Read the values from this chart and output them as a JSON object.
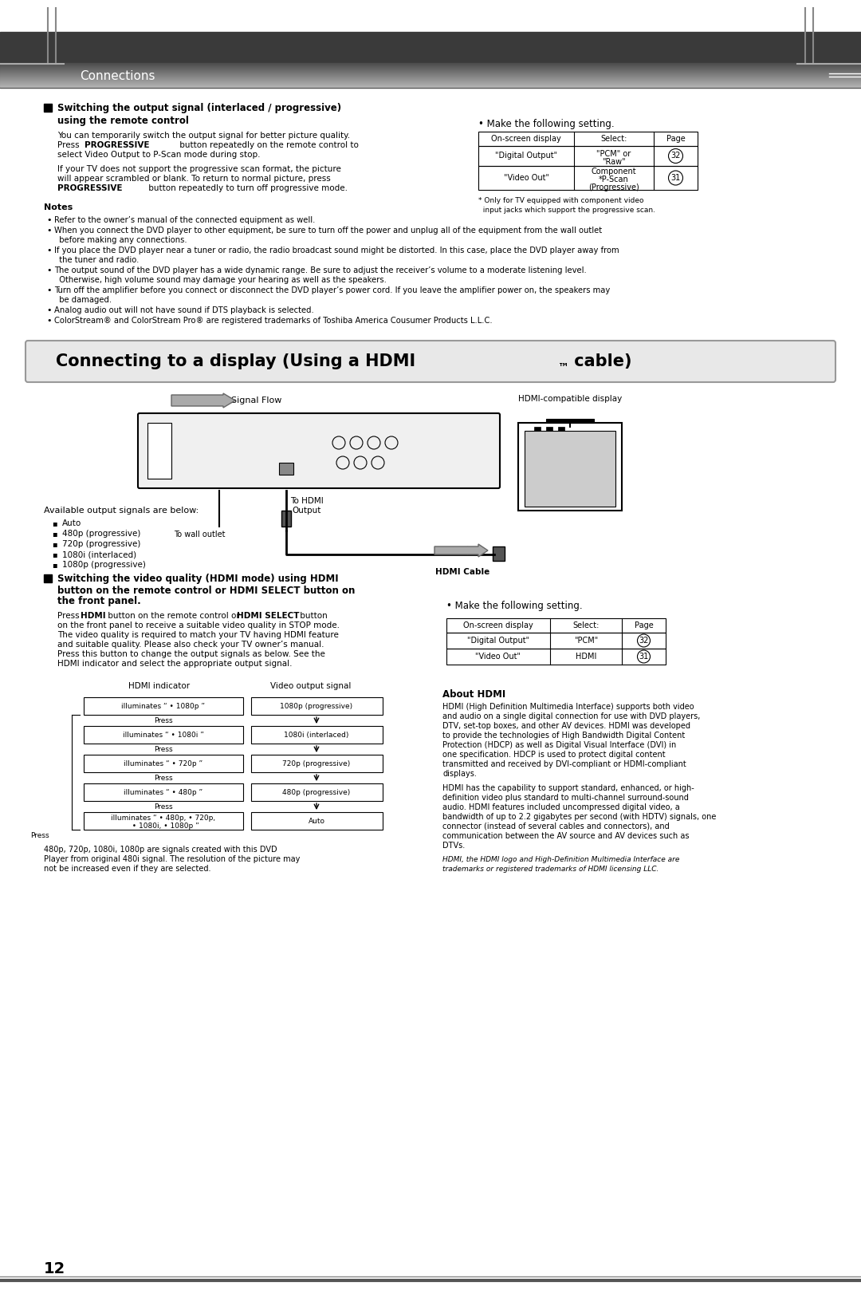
{
  "page_bg": "#ffffff",
  "header_bar_color": "#555555",
  "header_text": "Connections",
  "section_title_hdmi": "Connecting to a display (Using a HDMI™ cable)",
  "page_number": "12",
  "top_section": {
    "heading": "■ Switching the output signal (interlaced / progressive)\n     using the remote control",
    "para1": "You can temporarily switch the output signal for better picture quality.\nPress PROGRESSIVE button repeatedly on the remote control to\nselect Video Output to P-Scan mode during stop.",
    "para2": "If your TV does not support the progressive scan format, the picture\nwill appear scrambled or blank. To return to normal picture, press\nPROGRESSIVE button repeatedly to turn off progressive mode.",
    "table1_header": [
      "On-screen display",
      "Select:",
      "Page"
    ],
    "table1_rows": [
      [
        "\"Digital Output\"",
        "\"PCM\" or\n\"Raw\"",
        "32"
      ],
      [
        "\"Video Out\"",
        "Component\n*P-Scan\n(Progressive)",
        "31"
      ]
    ],
    "footnote": "* Only for TV equipped with component video\n   input jacks which support the progressive scan."
  },
  "notes_heading": "Notes",
  "notes": [
    "Refer to the owner’s manual of the connected equipment as well.",
    "When you connect the DVD player to other equipment, be sure to turn off the power and unplug all of the equipment from the wall outlet\n  before making any connections.",
    "If you place the DVD player near a tuner or radio, the radio broadcast sound might be distorted. In this case, place the DVD player away from\n  the tuner and radio.",
    "The output sound of the DVD player has a wide dynamic range. Be sure to adjust the receiver’s volume to a moderate listening level.\n  Otherwise, high volume sound may damage your hearing as well as the speakers.",
    "Turn off the amplifier before you connect or disconnect the DVD player’s power cord. If you leave the amplifier power on, the speakers may\n  be damaged.",
    "Analog audio out will not have sound if DTS playback is selected.",
    "ColorStream® and ColorStream Pro® are registered trademarks of Toshiba America Cousumer Products L.L.C."
  ],
  "hdmi_section": {
    "signal_flow_label": "Signal Flow",
    "to_wall_outlet": "To wall outlet",
    "to_hdmi_output": "To HDMI\nOutput",
    "hdmi_cable_label": "HDMI Cable",
    "hdmi_display_label": "HDMI-compatible display",
    "output_signals_heading": "Available output signals are below:",
    "output_signals": [
      "Auto",
      "480p (progressive)",
      "720p (progressive)",
      "1080i (interlaced)",
      "1080p (progressive)"
    ],
    "section2_heading": "■ Switching the video quality (HDMI mode) using HDMI\n     button on the remote control or HDMI SELECT button on\n     the front panel.",
    "section2_para": "Press HDMI button on the remote control or HDMI SELECT button\non the front panel to receive a suitable video quality in STOP mode.\nThe video quality is required to match your TV having HDMI feature\nand suitable quality. Please also check your TV owner’s manual.\nPress this button to change the output signals as below. See the\nHDMI indicator and select the appropriate output signal.",
    "table2_header": [
      "On-screen display",
      "Select:",
      "Page"
    ],
    "table2_rows": [
      [
        "\"Digital Output\"",
        "\"PCM\"",
        "32"
      ],
      [
        "\"Video Out\"",
        "HDMI",
        "31"
      ]
    ],
    "make_setting2": "• Make the following setting.",
    "hdmi_indicator_label": "HDMI indicator",
    "video_output_label": "Video output signal",
    "hdmi_table_rows": [
      [
        "illuminates “ • 1080p ”",
        "1080p (progressive)"
      ],
      [
        "illuminates “ • 1080i ”",
        "1080i (interlaced)"
      ],
      [
        "illuminates “ • 720p ”",
        "720p (progressive)"
      ],
      [
        "illuminates “ • 480p ”",
        "480p (progressive)"
      ],
      [
        "illuminates “ • 480p, • 720p,\n  • 1080i, • 1080p ”",
        "Auto"
      ]
    ],
    "press_label": "Press",
    "about_hdmi_heading": "About HDMI",
    "about_hdmi_text": "HDMI (High Definition Multimedia Interface) supports both video\nand audio on a single digital connection for use with DVD players,\nDTV, set-top boxes, and other AV devices. HDMI was developed\nto provide the technologies of High Bandwidth Digital Content\nProtection (HDCP) as well as Digital Visual Interface (DVI) in\none specification. HDCP is used to protect digital content\ntransmitted and received by DVI-compliant or HDMI-compliant\ndisplays.\n\nHDMI has the capability to support standard, enhanced, or high-\ndefinition video plus standard to multi-channel surround-sound\naudio. HDMI features included uncompressed digital video, a\nbandwidth of up to 2.2 gigabytes per second (with HDTV) signals, one\nconnector (instead of several cables and connectors), and\ncommunication between the AV source and AV devices such as\nDTVs.",
    "about_hdmi_footnote": "HDMI, the HDMI logo and High-Definition Multimedia Interface are\ntrademarks or registered trademarks of HDMI licensing LLC."
  }
}
